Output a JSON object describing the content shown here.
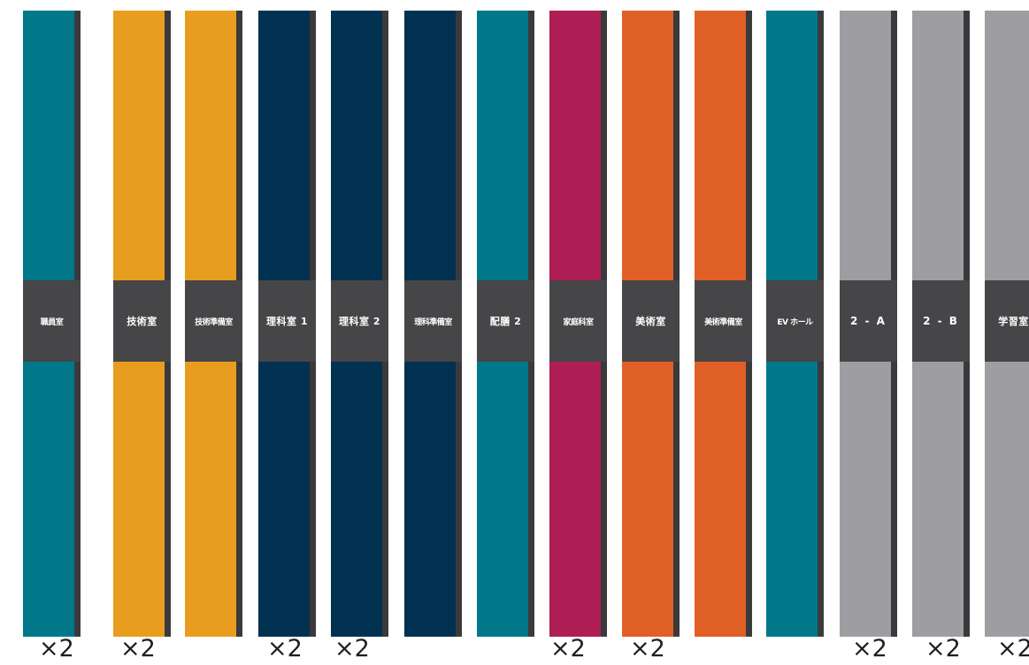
{
  "signs": [
    {
      "label": "職員室",
      "color": "#00788a",
      "multiplier": "×2"
    },
    {
      "label": "技術室",
      "color": "#e99d1e",
      "multiplier": "×2"
    },
    {
      "label": "技術準備室",
      "color": "#e99d1e",
      "multiplier": ""
    },
    {
      "label": "理科室 1",
      "color": "#003150",
      "multiplier": "×2"
    },
    {
      "label": "理科室 2",
      "color": "#003150",
      "multiplier": "×2"
    },
    {
      "label": "理科準備室",
      "color": "#003150",
      "multiplier": ""
    },
    {
      "label": "配膳 2",
      "color": "#00788a",
      "multiplier": ""
    },
    {
      "label": "家庭科室",
      "color": "#ae1d54",
      "multiplier": "×2"
    },
    {
      "label": "美術室",
      "color": "#e06027",
      "multiplier": "×2"
    },
    {
      "label": "美術準備室",
      "color": "#e06027",
      "multiplier": ""
    },
    {
      "label": "EV ホール",
      "color": "#00788a",
      "multiplier": ""
    },
    {
      "label": "2 - A",
      "color": "#9e9ea2",
      "multiplier": "×2"
    },
    {
      "label": "2 - B",
      "color": "#9e9ea2",
      "multiplier": "×2"
    },
    {
      "label": "学習室",
      "color": "#9e9ea2",
      "multiplier": "×2"
    }
  ]
}
